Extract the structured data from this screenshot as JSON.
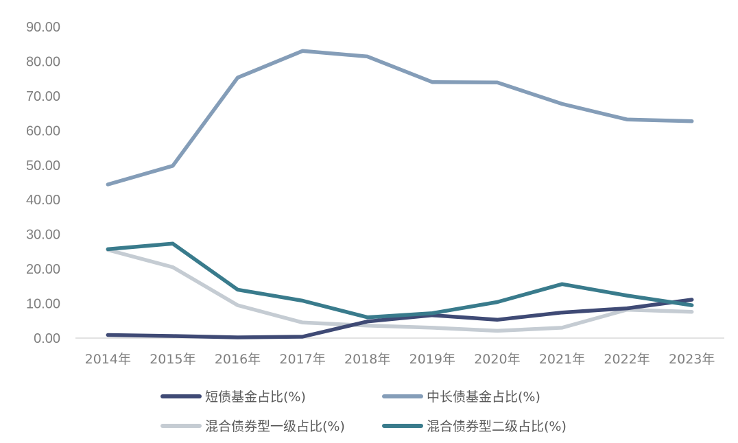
{
  "chart_data": {
    "type": "line",
    "title": "",
    "xlabel": "",
    "ylabel": "",
    "categories": [
      "2014年",
      "2015年",
      "2016年",
      "2017年",
      "2018年",
      "2019年",
      "2020年",
      "2021年",
      "2022年",
      "2023年"
    ],
    "ylim": [
      0,
      90
    ],
    "yticks": [
      "0.00",
      "10.00",
      "20.00",
      "30.00",
      "40.00",
      "50.00",
      "60.00",
      "70.00",
      "80.00",
      "90.00"
    ],
    "grid": false,
    "legend_position": "bottom",
    "series": [
      {
        "name": "短债基金占比(%)",
        "color": "#3f4a75",
        "values": [
          0.9,
          0.6,
          0.2,
          0.4,
          4.8,
          6.6,
          5.3,
          7.4,
          8.6,
          11.1
        ]
      },
      {
        "name": "中长债基金占比(%)",
        "color": "#849db8",
        "values": [
          44.4,
          49.8,
          75.3,
          83.0,
          81.4,
          74.0,
          73.9,
          67.7,
          63.2,
          62.7
        ]
      },
      {
        "name": "混合债券型一级占比(%)",
        "color": "#c5ccd3",
        "values": [
          25.5,
          20.5,
          9.5,
          4.5,
          3.6,
          3.0,
          2.1,
          3.0,
          8.2,
          7.6
        ]
      },
      {
        "name": "混合债券型二级占比(%)",
        "color": "#397b8c",
        "values": [
          25.7,
          27.3,
          14.0,
          10.8,
          6.0,
          7.2,
          10.4,
          15.6,
          12.3,
          9.5
        ]
      }
    ]
  }
}
